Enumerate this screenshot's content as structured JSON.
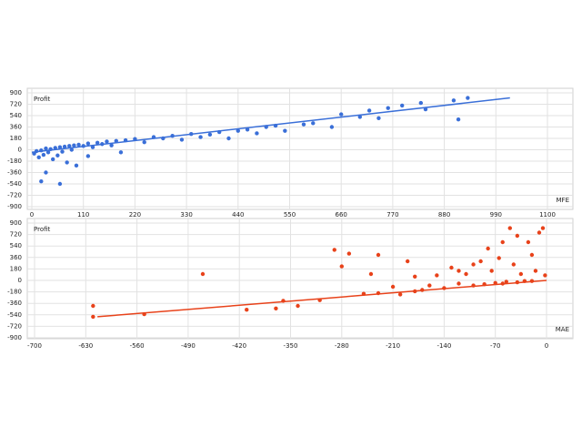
{
  "chart_data": [
    {
      "type": "scatter",
      "y_label": "Profit",
      "x_label": "MFE",
      "color": "#3a6fd8",
      "xlim": [
        0,
        1100
      ],
      "xticks": [
        0,
        110,
        220,
        330,
        440,
        550,
        660,
        770,
        880,
        990,
        1100
      ],
      "ylim": [
        -900,
        900
      ],
      "yticks": [
        900,
        720,
        540,
        360,
        180,
        0,
        -180,
        -360,
        -540,
        -720,
        -900
      ],
      "grid": true,
      "x": [
        5,
        10,
        15,
        20,
        25,
        30,
        35,
        40,
        45,
        50,
        55,
        60,
        65,
        70,
        75,
        80,
        85,
        90,
        95,
        100,
        110,
        120,
        130,
        140,
        150,
        160,
        170,
        180,
        190,
        200,
        220,
        240,
        260,
        280,
        300,
        320,
        340,
        360,
        380,
        400,
        420,
        440,
        460,
        480,
        500,
        520,
        540,
        580,
        600,
        640,
        660,
        700,
        720,
        740,
        760,
        790,
        830,
        840,
        900,
        910,
        930,
        20,
        60,
        30,
        120
      ],
      "values": [
        -60,
        -20,
        -120,
        -10,
        -80,
        20,
        -40,
        10,
        -150,
        30,
        -90,
        40,
        -30,
        50,
        -200,
        60,
        0,
        70,
        -250,
        80,
        60,
        100,
        40,
        110,
        90,
        130,
        70,
        140,
        -40,
        150,
        170,
        120,
        200,
        180,
        220,
        160,
        250,
        200,
        240,
        280,
        180,
        300,
        320,
        260,
        360,
        380,
        300,
        400,
        420,
        360,
        560,
        520,
        620,
        500,
        660,
        700,
        740,
        640,
        780,
        480,
        820,
        -500,
        -540,
        -360,
        -100
      ],
      "trendline": {
        "x": [
          0,
          1020
        ],
        "values": [
          -40,
          820
        ]
      }
    },
    {
      "type": "scatter",
      "y_label": "Profit",
      "x_label": "MAE",
      "color": "#e8421a",
      "xlim": [
        -700,
        0
      ],
      "xticks": [
        -700,
        -630,
        -560,
        -490,
        -420,
        -350,
        -280,
        -210,
        -140,
        -70,
        0
      ],
      "ylim": [
        -900,
        900
      ],
      "yticks": [
        900,
        720,
        540,
        360,
        180,
        0,
        -180,
        -360,
        -540,
        -720,
        -900
      ],
      "grid": true,
      "x": [
        -620,
        -620,
        -550,
        -470,
        -410,
        -370,
        -360,
        -340,
        -310,
        -290,
        -280,
        -270,
        -250,
        -240,
        -230,
        -210,
        -200,
        -190,
        -180,
        -170,
        -160,
        -150,
        -140,
        -130,
        -120,
        -110,
        -100,
        -90,
        -85,
        -80,
        -75,
        -70,
        -65,
        -60,
        -55,
        -50,
        -45,
        -40,
        -35,
        -30,
        -25,
        -20,
        -15,
        -10,
        -5,
        -2,
        -120,
        -100,
        -180,
        -230,
        -60,
        -40,
        -20
      ],
      "values": [
        -400,
        -570,
        -530,
        100,
        -460,
        -440,
        -320,
        -400,
        -310,
        480,
        220,
        420,
        -210,
        100,
        -200,
        -100,
        -220,
        300,
        60,
        -150,
        -80,
        80,
        -120,
        200,
        -50,
        100,
        -80,
        300,
        -60,
        500,
        150,
        -40,
        350,
        600,
        -20,
        820,
        250,
        700,
        100,
        -10,
        600,
        400,
        150,
        750,
        820,
        80,
        150,
        250,
        -170,
        400,
        -50,
        -30,
        -10
      ],
      "trendline": {
        "x": [
          -614,
          0
        ],
        "values": [
          -570,
          0
        ]
      }
    }
  ]
}
